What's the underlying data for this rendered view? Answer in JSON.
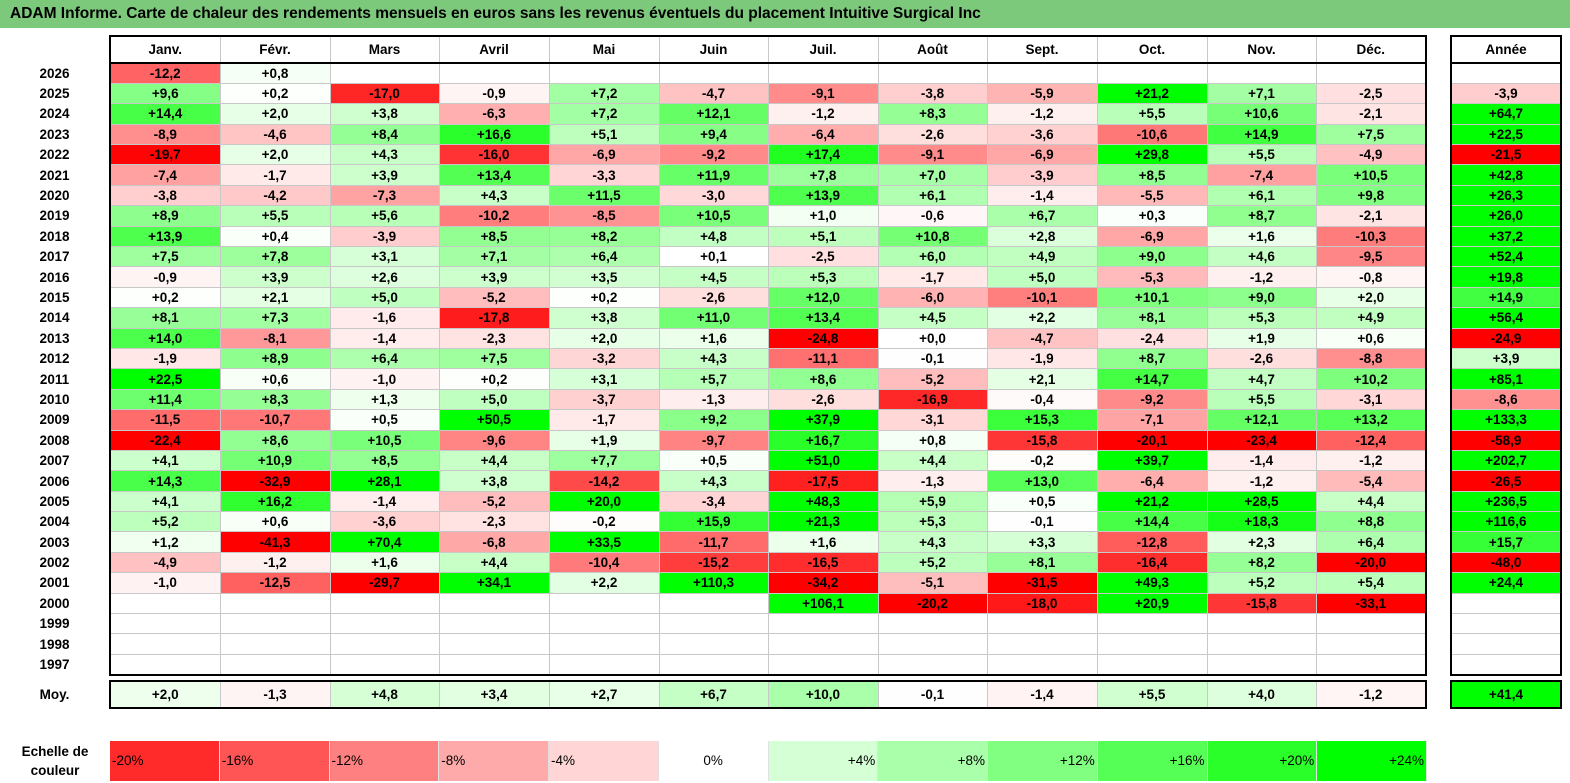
{
  "title": "ADAM Informe. Carte de chaleur des rendements mensuels en euros sans les revenus éventuels du placement Intuitive Surgical Inc",
  "chart_data": {
    "type": "heatmap",
    "months": [
      "Janv.",
      "Févr.",
      "Mars",
      "Avril",
      "Mai",
      "Juin",
      "Juil.",
      "Août",
      "Sept.",
      "Oct.",
      "Nov.",
      "Déc."
    ],
    "annual_header": "Année",
    "rows": [
      {
        "year": "2026",
        "values": [
          "-12,2",
          "+0,8",
          "",
          "",
          "",
          "",
          "",
          "",
          "",
          "",
          "",
          ""
        ],
        "annual": ""
      },
      {
        "year": "2025",
        "values": [
          "+9,6",
          "+0,2",
          "-17,0",
          "-0,9",
          "+7,2",
          "-4,7",
          "-9,1",
          "-3,8",
          "-5,9",
          "+21,2",
          "+7,1",
          "-2,5"
        ],
        "annual": "-3,9"
      },
      {
        "year": "2024",
        "values": [
          "+14,4",
          "+2,0",
          "+3,8",
          "-6,3",
          "+7,2",
          "+12,1",
          "-1,2",
          "+8,3",
          "-1,2",
          "+5,5",
          "+10,6",
          "-2,1"
        ],
        "annual": "+64,7"
      },
      {
        "year": "2023",
        "values": [
          "-8,9",
          "-4,6",
          "+8,4",
          "+16,6",
          "+5,1",
          "+9,4",
          "-6,4",
          "-2,6",
          "-3,6",
          "-10,6",
          "+14,9",
          "+7,5"
        ],
        "annual": "+22,5"
      },
      {
        "year": "2022",
        "values": [
          "-19,7",
          "+2,0",
          "+4,3",
          "-16,0",
          "-6,9",
          "-9,2",
          "+17,4",
          "-9,1",
          "-6,9",
          "+29,8",
          "+5,5",
          "-4,9"
        ],
        "annual": "-21,5"
      },
      {
        "year": "2021",
        "values": [
          "-7,4",
          "-1,7",
          "+3,9",
          "+13,4",
          "-3,3",
          "+11,9",
          "+7,8",
          "+7,0",
          "-3,9",
          "+8,5",
          "-7,4",
          "+10,5"
        ],
        "annual": "+42,8"
      },
      {
        "year": "2020",
        "values": [
          "-3,8",
          "-4,2",
          "-7,3",
          "+4,3",
          "+11,5",
          "-3,0",
          "+13,9",
          "+6,1",
          "-1,4",
          "-5,5",
          "+6,1",
          "+9,8"
        ],
        "annual": "+26,3"
      },
      {
        "year": "2019",
        "values": [
          "+8,9",
          "+5,5",
          "+5,6",
          "-10,2",
          "-8,5",
          "+10,5",
          "+1,0",
          "-0,6",
          "+6,7",
          "+0,3",
          "+8,7",
          "-2,1"
        ],
        "annual": "+26,0"
      },
      {
        "year": "2018",
        "values": [
          "+13,9",
          "+0,4",
          "-3,9",
          "+8,5",
          "+8,2",
          "+4,8",
          "+5,1",
          "+10,8",
          "+2,8",
          "-6,9",
          "+1,6",
          "-10,3"
        ],
        "annual": "+37,2"
      },
      {
        "year": "2017",
        "values": [
          "+7,5",
          "+7,8",
          "+3,1",
          "+7,1",
          "+6,4",
          "+0,1",
          "-2,5",
          "+6,0",
          "+4,9",
          "+9,0",
          "+4,6",
          "-9,5"
        ],
        "annual": "+52,4"
      },
      {
        "year": "2016",
        "values": [
          "-0,9",
          "+3,9",
          "+2,6",
          "+3,9",
          "+3,5",
          "+4,5",
          "+5,3",
          "-1,7",
          "+5,0",
          "-5,3",
          "-1,2",
          "-0,8"
        ],
        "annual": "+19,8"
      },
      {
        "year": "2015",
        "values": [
          "+0,2",
          "+2,1",
          "+5,0",
          "-5,2",
          "+0,2",
          "-2,6",
          "+12,0",
          "-6,0",
          "-10,1",
          "+10,1",
          "+9,0",
          "+2,0"
        ],
        "annual": "+14,9"
      },
      {
        "year": "2014",
        "values": [
          "+8,1",
          "+7,3",
          "-1,6",
          "-17,8",
          "+3,8",
          "+11,0",
          "+13,4",
          "+4,5",
          "+2,2",
          "+8,1",
          "+5,3",
          "+4,9"
        ],
        "annual": "+56,4"
      },
      {
        "year": "2013",
        "values": [
          "+14,0",
          "-8,1",
          "-1,4",
          "-2,3",
          "+2,0",
          "+1,6",
          "-24,8",
          "+0,0",
          "-4,7",
          "-2,4",
          "+1,9",
          "+0,6"
        ],
        "annual": "-24,9"
      },
      {
        "year": "2012",
        "values": [
          "-1,9",
          "+8,9",
          "+6,4",
          "+7,5",
          "-3,2",
          "+4,3",
          "-11,1",
          "-0,1",
          "-1,9",
          "+8,7",
          "-2,6",
          "-8,8"
        ],
        "annual": "+3,9"
      },
      {
        "year": "2011",
        "values": [
          "+22,5",
          "+0,6",
          "-1,0",
          "+0,2",
          "+3,1",
          "+5,7",
          "+8,6",
          "-5,2",
          "+2,1",
          "+14,7",
          "+4,7",
          "+10,2"
        ],
        "annual": "+85,1"
      },
      {
        "year": "2010",
        "values": [
          "+11,4",
          "+8,3",
          "+1,3",
          "+5,0",
          "-3,7",
          "-1,3",
          "-2,6",
          "-16,9",
          "-0,4",
          "-9,2",
          "+5,5",
          "-3,1"
        ],
        "annual": "-8,6"
      },
      {
        "year": "2009",
        "values": [
          "-11,5",
          "-10,7",
          "+0,5",
          "+50,5",
          "-1,7",
          "+9,2",
          "+37,9",
          "-3,1",
          "+15,3",
          "-7,1",
          "+12,1",
          "+13,2"
        ],
        "annual": "+133,3"
      },
      {
        "year": "2008",
        "values": [
          "-22,4",
          "+8,6",
          "+10,5",
          "-9,6",
          "+1,9",
          "-9,7",
          "+16,7",
          "+0,8",
          "-15,8",
          "-20,1",
          "-23,4",
          "-12,4"
        ],
        "annual": "-58,9"
      },
      {
        "year": "2007",
        "values": [
          "+4,1",
          "+10,9",
          "+8,5",
          "+4,4",
          "+7,7",
          "+0,5",
          "+51,0",
          "+4,4",
          "-0,2",
          "+39,7",
          "-1,4",
          "-1,2"
        ],
        "annual": "+202,7"
      },
      {
        "year": "2006",
        "values": [
          "+14,3",
          "-32,9",
          "+28,1",
          "+3,8",
          "-14,2",
          "+4,3",
          "-17,5",
          "-1,3",
          "+13,0",
          "-6,4",
          "-1,2",
          "-5,4"
        ],
        "annual": "-26,5"
      },
      {
        "year": "2005",
        "values": [
          "+4,1",
          "+16,2",
          "-1,4",
          "-5,2",
          "+20,0",
          "-3,4",
          "+48,3",
          "+5,9",
          "+0,5",
          "+21,2",
          "+28,5",
          "+4,4"
        ],
        "annual": "+236,5"
      },
      {
        "year": "2004",
        "values": [
          "+5,2",
          "+0,6",
          "-3,6",
          "-2,3",
          "-0,2",
          "+15,9",
          "+21,3",
          "+5,3",
          "-0,1",
          "+14,4",
          "+18,3",
          "+8,8"
        ],
        "annual": "+116,6"
      },
      {
        "year": "2003",
        "values": [
          "+1,2",
          "-41,3",
          "+70,4",
          "-6,8",
          "+33,5",
          "-11,7",
          "+1,6",
          "+4,3",
          "+3,3",
          "-12,8",
          "+2,3",
          "+6,4"
        ],
        "annual": "+15,7"
      },
      {
        "year": "2002",
        "values": [
          "-4,9",
          "-1,2",
          "+1,6",
          "+4,4",
          "-10,4",
          "-15,2",
          "-16,5",
          "+5,2",
          "+8,1",
          "-16,4",
          "+8,2",
          "-20,0"
        ],
        "annual": "-48,0"
      },
      {
        "year": "2001",
        "values": [
          "-1,0",
          "-12,5",
          "-29,7",
          "+34,1",
          "+2,2",
          "+110,3",
          "-34,2",
          "-5,1",
          "-31,5",
          "+49,3",
          "+5,2",
          "+5,4"
        ],
        "annual": "+24,4"
      },
      {
        "year": "2000",
        "values": [
          "",
          "",
          "",
          "",
          "",
          "",
          "+106,1",
          "-20,2",
          "-18,0",
          "+20,9",
          "-15,8",
          "-33,1"
        ],
        "annual": ""
      },
      {
        "year": "1999",
        "values": [
          "",
          "",
          "",
          "",
          "",
          "",
          "",
          "",
          "",
          "",
          "",
          ""
        ],
        "annual": ""
      },
      {
        "year": "1998",
        "values": [
          "",
          "",
          "",
          "",
          "",
          "",
          "",
          "",
          "",
          "",
          "",
          ""
        ],
        "annual": ""
      },
      {
        "year": "1997",
        "values": [
          "",
          "",
          "",
          "",
          "",
          "",
          "",
          "",
          "",
          "",
          "",
          ""
        ],
        "annual": ""
      }
    ],
    "average": {
      "label": "Moy.",
      "values": [
        "+2,0",
        "-1,3",
        "+4,8",
        "+3,4",
        "+2,7",
        "+6,7",
        "+10,0",
        "-0,1",
        "-1,4",
        "+5,5",
        "+4,0",
        "-1,2"
      ],
      "annual": "+41,4"
    },
    "scale": {
      "label": "Echelle de couleur",
      "steps": [
        {
          "label": "-20%",
          "value": -20
        },
        {
          "label": "-16%",
          "value": -16
        },
        {
          "label": "-12%",
          "value": -12
        },
        {
          "label": "-8%",
          "value": -8
        },
        {
          "label": "-4%",
          "value": -4
        },
        {
          "label": "0%",
          "value": 0
        },
        {
          "label": "+4%",
          "value": 4
        },
        {
          "label": "+8%",
          "value": 8
        },
        {
          "label": "+12%",
          "value": 12
        },
        {
          "label": "+16%",
          "value": 16
        },
        {
          "label": "+20%",
          "value": 20
        },
        {
          "label": "+24%",
          "value": 24
        }
      ]
    },
    "colors": {
      "negative_max": "#ff0000",
      "neutral": "#ffffff",
      "positive_max": "#00ff00",
      "title_bg": "#7dc97c"
    }
  }
}
